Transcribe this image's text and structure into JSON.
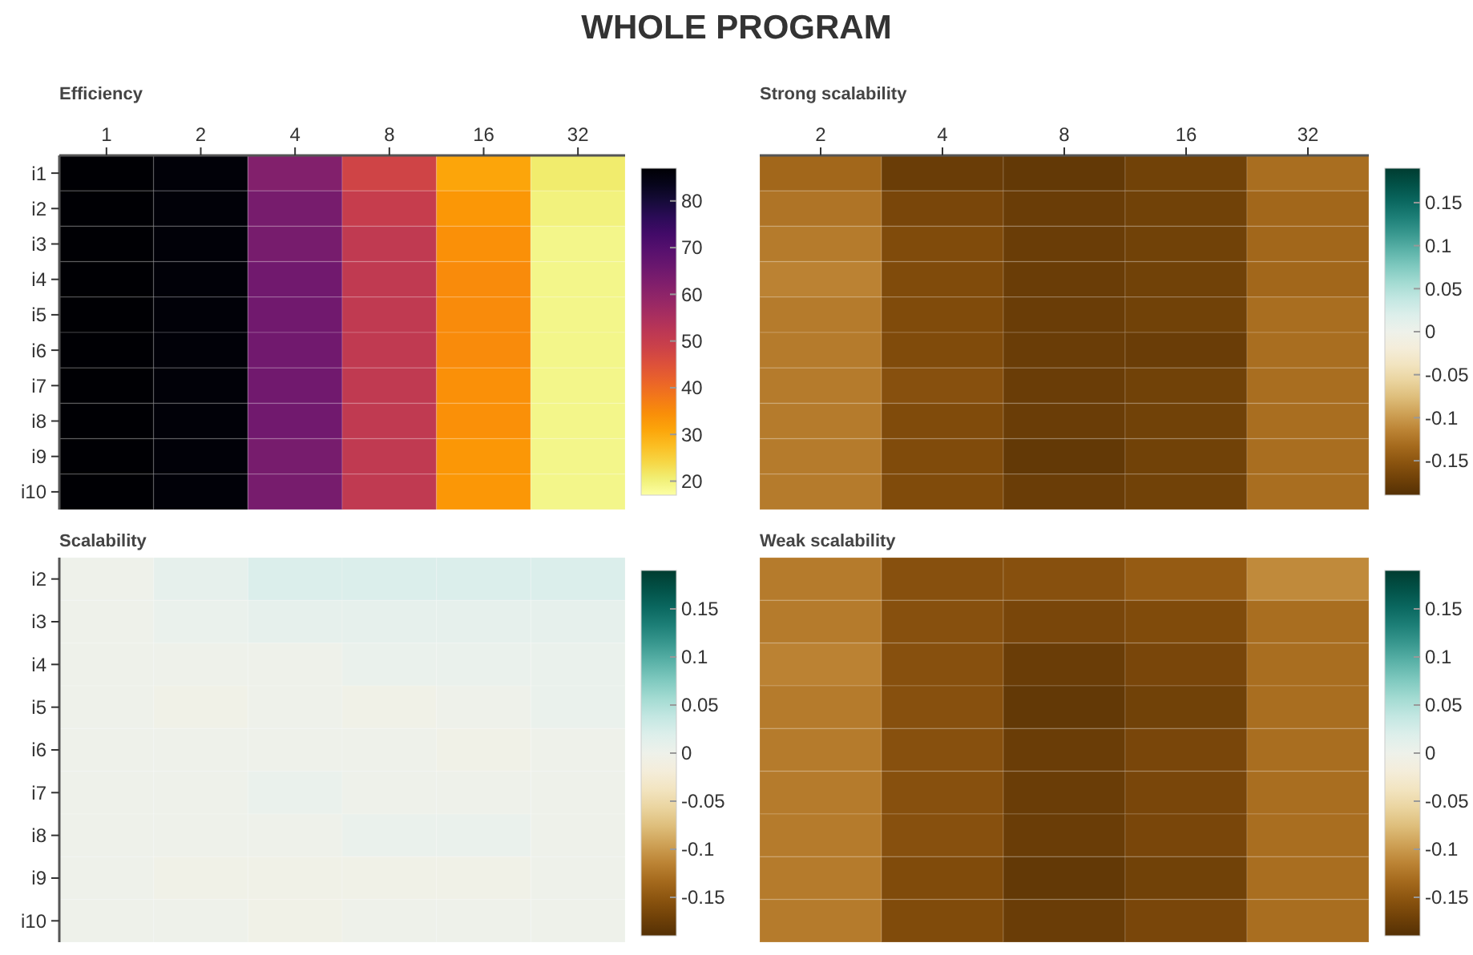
{
  "chart_data": [
    {
      "type": "heatmap",
      "title": "Efficiency",
      "annotations": [
        "WHOLE PROGRAM"
      ],
      "categories": [
        "1",
        "2",
        "4",
        "8",
        "16",
        "32"
      ],
      "y_categories": [
        "i1",
        "i2",
        "i3",
        "i4",
        "i5",
        "i6",
        "i7",
        "i8",
        "i9",
        "i10"
      ],
      "cells": [
        [
          87,
          86,
          62,
          48,
          31,
          21
        ],
        [
          87,
          86,
          64,
          50,
          33,
          20
        ],
        [
          87,
          86,
          64,
          51,
          34,
          19
        ],
        [
          87,
          86,
          65,
          51,
          35,
          19
        ],
        [
          87,
          86,
          65,
          51,
          35,
          19
        ],
        [
          87,
          86,
          65,
          51,
          35,
          19
        ],
        [
          87,
          86,
          65,
          51,
          34,
          19
        ],
        [
          87,
          86,
          65,
          51,
          34,
          19
        ],
        [
          87,
          86,
          64,
          51,
          33,
          19
        ],
        [
          87,
          86,
          64,
          51,
          33,
          19
        ]
      ],
      "clim": [
        17,
        87
      ],
      "cticks": [
        20,
        30,
        40,
        50,
        60,
        70,
        80
      ]
    },
    {
      "type": "heatmap",
      "title": "Strong scalability",
      "categories": [
        "2",
        "4",
        "8",
        "16",
        "32"
      ],
      "y_categories": [
        null,
        null,
        null,
        null,
        null,
        null,
        null,
        null,
        null,
        null
      ],
      "cells": [
        [
          -0.135,
          -0.175,
          -0.18,
          -0.17,
          -0.13
        ],
        [
          -0.125,
          -0.165,
          -0.175,
          -0.17,
          -0.135
        ],
        [
          -0.12,
          -0.16,
          -0.175,
          -0.17,
          -0.135
        ],
        [
          -0.115,
          -0.16,
          -0.175,
          -0.17,
          -0.135
        ],
        [
          -0.12,
          -0.16,
          -0.175,
          -0.17,
          -0.13
        ],
        [
          -0.12,
          -0.16,
          -0.175,
          -0.175,
          -0.13
        ],
        [
          -0.12,
          -0.155,
          -0.175,
          -0.17,
          -0.13
        ],
        [
          -0.12,
          -0.16,
          -0.175,
          -0.17,
          -0.13
        ],
        [
          -0.12,
          -0.16,
          -0.18,
          -0.17,
          -0.13
        ],
        [
          -0.12,
          -0.16,
          -0.175,
          -0.17,
          -0.13
        ]
      ],
      "clim": [
        -0.19,
        0.19
      ],
      "cticks": [
        -0.15,
        -0.1,
        -0.05,
        0,
        0.05,
        0.1,
        0.15
      ]
    },
    {
      "type": "heatmap",
      "title": "Scalability",
      "categories": [
        null,
        null,
        null,
        null,
        null,
        null
      ],
      "y_categories": [
        "i2",
        "i3",
        "i4",
        "i5",
        "i6",
        "i7",
        "i8",
        "i9",
        "i10"
      ],
      "cells": [
        [
          0,
          0.01,
          0.02,
          0.02,
          0.02,
          0.02
        ],
        [
          0,
          0.005,
          0.01,
          0.01,
          0.01,
          0.01
        ],
        [
          0,
          0,
          0,
          0.005,
          0.005,
          0.005
        ],
        [
          0,
          -0.005,
          0,
          -0.005,
          0,
          0.005
        ],
        [
          0,
          0,
          0,
          0,
          -0.005,
          0
        ],
        [
          0,
          0,
          0.005,
          0,
          0,
          0
        ],
        [
          0,
          0,
          0,
          0.005,
          0.005,
          0
        ],
        [
          0,
          -0.005,
          -0.005,
          -0.005,
          -0.005,
          0
        ],
        [
          0,
          0,
          -0.005,
          0,
          0,
          0
        ]
      ],
      "clim": [
        -0.19,
        0.19
      ],
      "cticks": [
        -0.15,
        -0.1,
        -0.05,
        0,
        0.05,
        0.1,
        0.15
      ]
    },
    {
      "type": "heatmap",
      "title": "Weak scalability",
      "categories": [
        null,
        null,
        null,
        null,
        null
      ],
      "y_categories": [
        null,
        null,
        null,
        null,
        null,
        null,
        null,
        null,
        null
      ],
      "cells": [
        [
          -0.12,
          -0.155,
          -0.155,
          -0.145,
          -0.11
        ],
        [
          -0.12,
          -0.155,
          -0.165,
          -0.16,
          -0.13
        ],
        [
          -0.115,
          -0.155,
          -0.175,
          -0.165,
          -0.13
        ],
        [
          -0.12,
          -0.155,
          -0.18,
          -0.17,
          -0.13
        ],
        [
          -0.12,
          -0.155,
          -0.175,
          -0.165,
          -0.13
        ],
        [
          -0.12,
          -0.155,
          -0.175,
          -0.165,
          -0.13
        ],
        [
          -0.12,
          -0.155,
          -0.175,
          -0.165,
          -0.13
        ],
        [
          -0.12,
          -0.16,
          -0.18,
          -0.17,
          -0.13
        ],
        [
          -0.12,
          -0.16,
          -0.175,
          -0.165,
          -0.13
        ]
      ],
      "clim": [
        -0.19,
        0.19
      ],
      "cticks": [
        -0.15,
        -0.1,
        -0.05,
        0,
        0.05,
        0.1,
        0.15
      ]
    }
  ]
}
